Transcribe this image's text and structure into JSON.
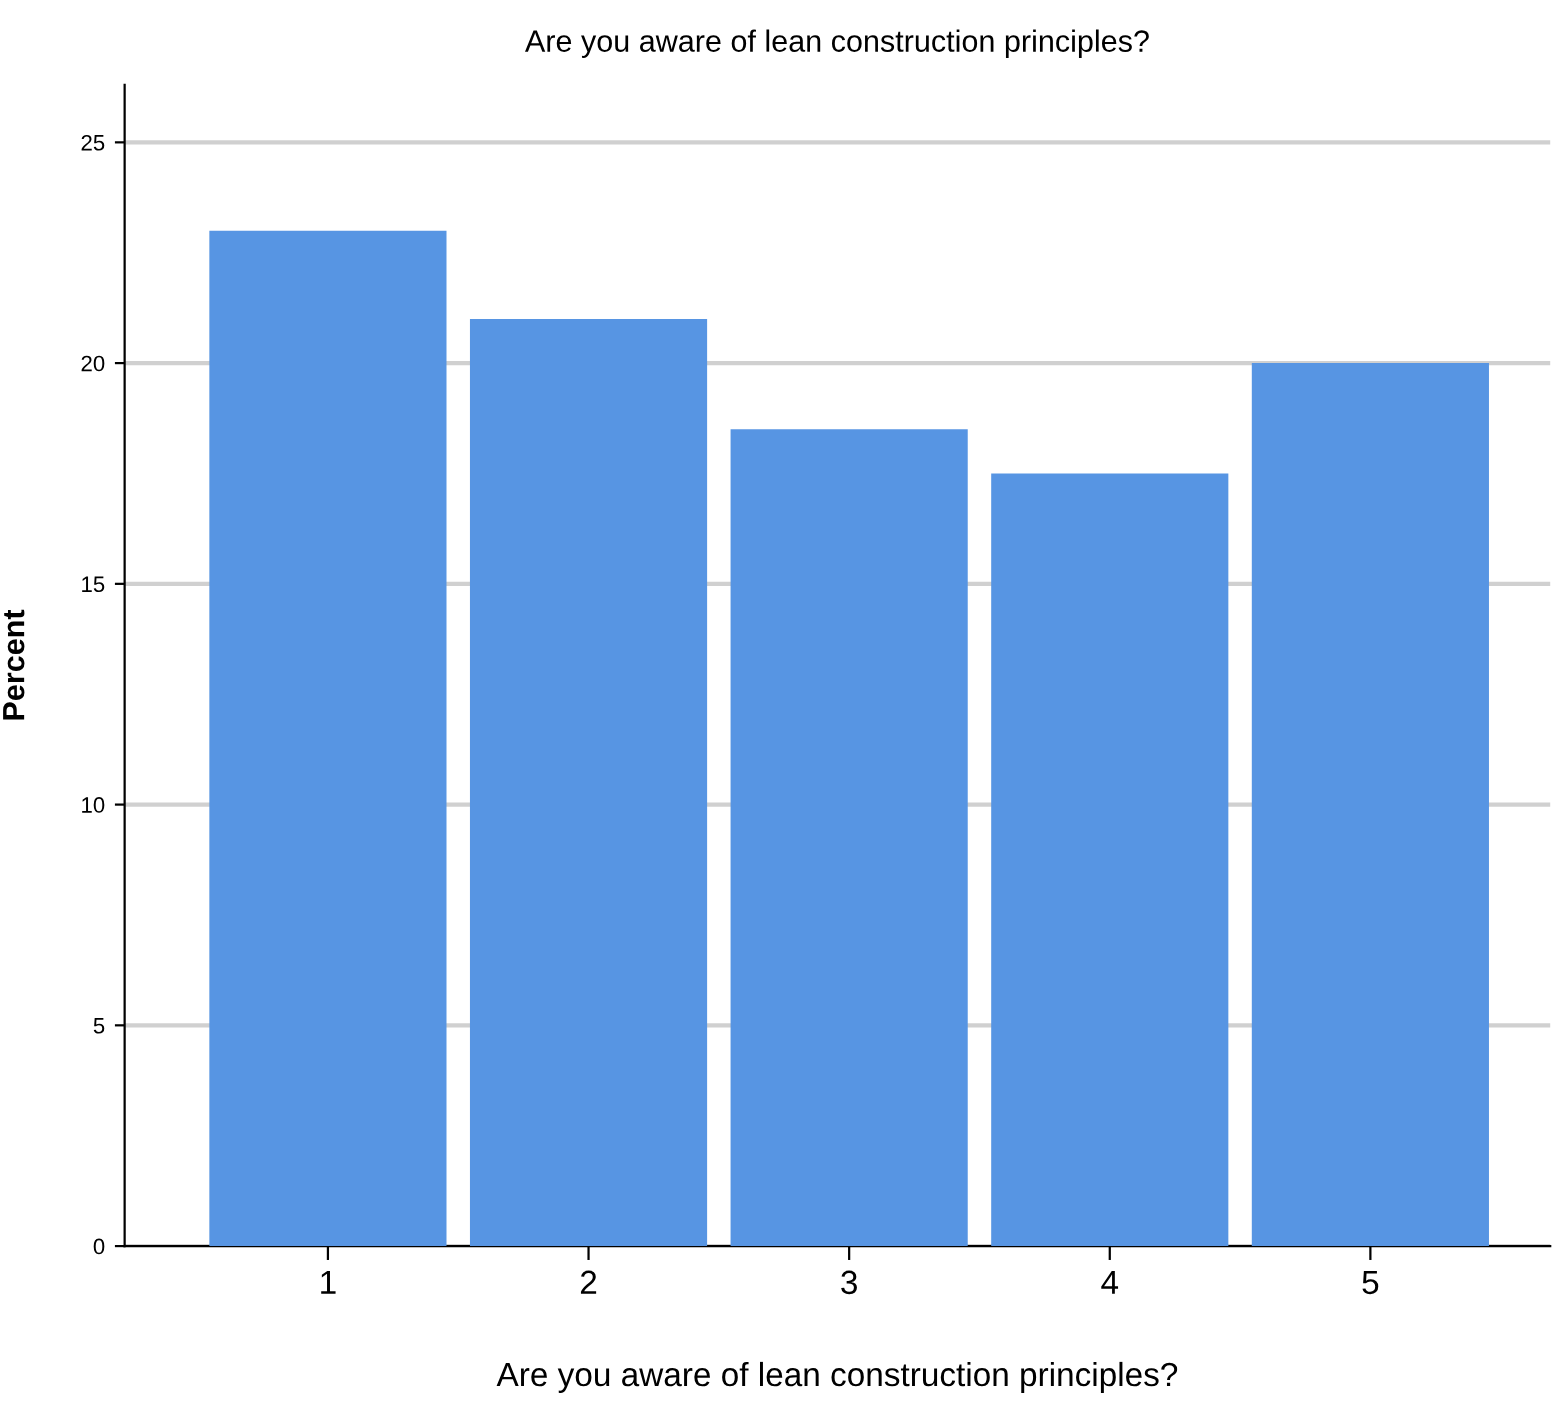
{
  "chart_data": {
    "type": "bar",
    "title": "Are you aware of lean construction principles?",
    "xlabel": "Are you aware of lean construction principles?",
    "ylabel": "Percent",
    "categories": [
      "1",
      "2",
      "3",
      "4",
      "5"
    ],
    "values": [
      23,
      21,
      18.5,
      17.5,
      20
    ],
    "color": "#5795e3",
    "ylim": [
      0,
      26.3
    ],
    "yticks": [
      0,
      5,
      10,
      15,
      20,
      25
    ],
    "grid": "y"
  }
}
